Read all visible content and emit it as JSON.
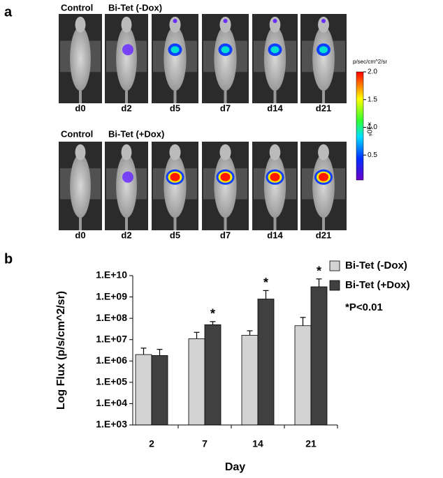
{
  "panel_a": {
    "label": "a",
    "rows": [
      {
        "group_labels": [
          "Control",
          "Bi-Tet (-Dox)"
        ],
        "days": [
          "d0",
          "d2",
          "d5",
          "d7",
          "d14",
          "d21"
        ]
      },
      {
        "group_labels": [
          "Control",
          "Bi-Tet (+Dox)"
        ],
        "days": [
          "d0",
          "d2",
          "d5",
          "d7",
          "d14",
          "d21"
        ]
      }
    ],
    "colorbar": {
      "title": "p/sec/cm^2/sr",
      "unit": "×10⁶",
      "lim": [
        0.05,
        2.0
      ],
      "ticks": [
        {
          "value": 2.0,
          "label": "2.0"
        },
        {
          "value": 1.5,
          "label": "1.5"
        },
        {
          "value": 1.0,
          "label": "1.0"
        },
        {
          "value": 0.5,
          "label": "0.5"
        }
      ]
    }
  },
  "panel_b": {
    "label": "b"
  },
  "chart_data": {
    "type": "bar",
    "y_label": "Log Flux (p/s/cm^2/sr)",
    "x_label": "Day",
    "categories": [
      "2",
      "7",
      "14",
      "21"
    ],
    "series": [
      {
        "name": "Bi-Tet (-Dox)",
        "color": "#d3d3d3",
        "values": [
          2000000,
          11000000,
          16000000,
          45000000
        ],
        "errors": [
          2000000,
          11000000,
          10000000,
          65000000
        ]
      },
      {
        "name": "Bi-Tet (+Dox)",
        "color": "#404040",
        "values": [
          1800000,
          50000000,
          800000000,
          3000000000
        ],
        "errors": [
          1700000,
          20000000,
          1200000000,
          4000000000
        ]
      }
    ],
    "log_scale": true,
    "ylim": [
      1000,
      10000000000
    ],
    "yticks": [
      {
        "value": 1000,
        "label": "1.E+03"
      },
      {
        "value": 10000,
        "label": "1.E+04"
      },
      {
        "value": 100000,
        "label": "1.E+05"
      },
      {
        "value": 1000000,
        "label": "1.E+06"
      },
      {
        "value": 10000000,
        "label": "1.E+07"
      },
      {
        "value": 100000000,
        "label": "1.E+08"
      },
      {
        "value": 1000000000,
        "label": "1.E+09"
      },
      {
        "value": 10000000000,
        "label": "1.E+10"
      }
    ],
    "annotations": [
      {
        "text": "*",
        "x": "7"
      },
      {
        "text": "*",
        "x": "14"
      },
      {
        "text": "*",
        "x": "21"
      }
    ],
    "note": "*P<0.01",
    "legend": "right"
  }
}
